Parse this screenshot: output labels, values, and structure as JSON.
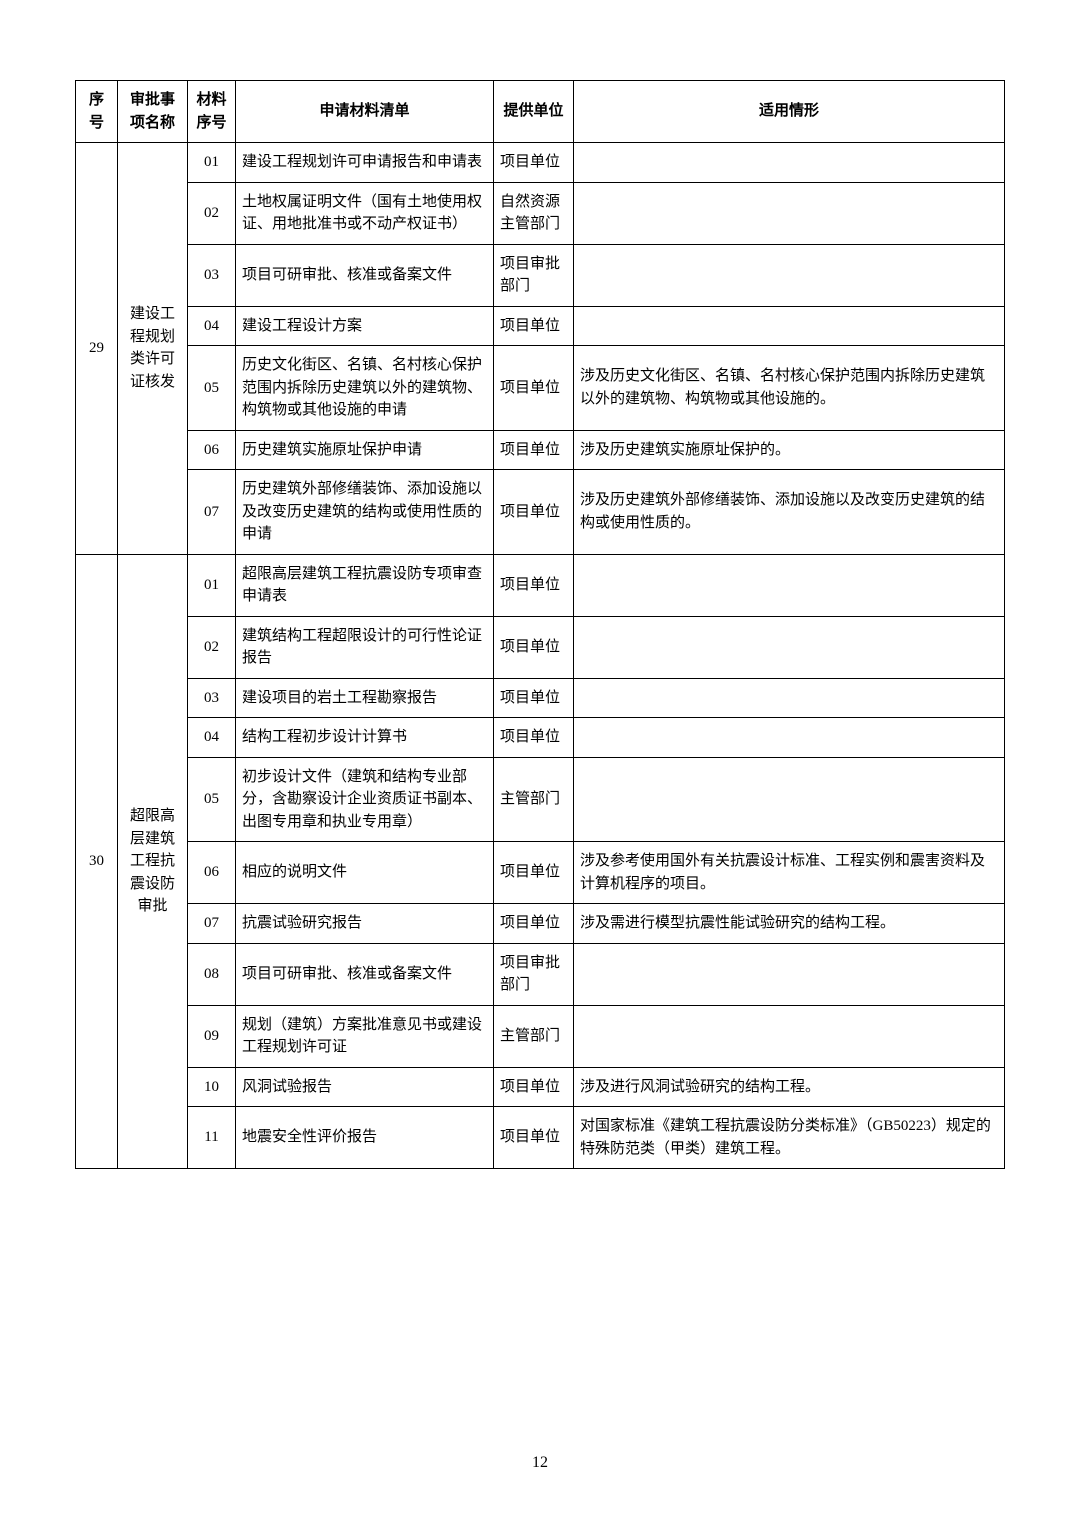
{
  "headers": {
    "seq": "序号",
    "item": "审批事项名称",
    "matseq": "材料序号",
    "list": "申请材料清单",
    "unit": "提供单位",
    "apply": "适用情形"
  },
  "groups": [
    {
      "seq": "29",
      "item": "建设工程规划类许可证核发",
      "rows": [
        {
          "matseq": "01",
          "list": "建设工程规划许可申请报告和申请表",
          "unit": "项目单位",
          "apply": ""
        },
        {
          "matseq": "02",
          "list": "土地权属证明文件（国有土地使用权证、用地批准书或不动产权证书）",
          "unit": "自然资源主管部门",
          "apply": ""
        },
        {
          "matseq": "03",
          "list": "项目可研审批、核准或备案文件",
          "unit": "项目审批部门",
          "apply": ""
        },
        {
          "matseq": "04",
          "list": "建设工程设计方案",
          "unit": "项目单位",
          "apply": ""
        },
        {
          "matseq": "05",
          "list": "历史文化街区、名镇、名村核心保护范围内拆除历史建筑以外的建筑物、构筑物或其他设施的申请",
          "unit": "项目单位",
          "apply": "涉及历史文化街区、名镇、名村核心保护范围内拆除历史建筑以外的建筑物、构筑物或其他设施的。"
        },
        {
          "matseq": "06",
          "list": "历史建筑实施原址保护申请",
          "unit": "项目单位",
          "apply": "涉及历史建筑实施原址保护的。"
        },
        {
          "matseq": "07",
          "list": "历史建筑外部修缮装饰、添加设施以及改变历史建筑的结构或使用性质的申请",
          "unit": "项目单位",
          "apply": "涉及历史建筑外部修缮装饰、添加设施以及改变历史建筑的结构或使用性质的。"
        }
      ]
    },
    {
      "seq": "30",
      "item": "超限高层建筑工程抗震设防审批",
      "rows": [
        {
          "matseq": "01",
          "list": "超限高层建筑工程抗震设防专项审查申请表",
          "unit": "项目单位",
          "apply": ""
        },
        {
          "matseq": "02",
          "list": "建筑结构工程超限设计的可行性论证报告",
          "unit": "项目单位",
          "apply": ""
        },
        {
          "matseq": "03",
          "list": "建设项目的岩土工程勘察报告",
          "unit": "项目单位",
          "apply": ""
        },
        {
          "matseq": "04",
          "list": "结构工程初步设计计算书",
          "unit": "项目单位",
          "apply": ""
        },
        {
          "matseq": "05",
          "list": "初步设计文件（建筑和结构专业部分，含勘察设计企业资质证书副本、出图专用章和执业专用章）",
          "unit": "主管部门",
          "apply": ""
        },
        {
          "matseq": "06",
          "list": "相应的说明文件",
          "unit": "项目单位",
          "apply": "涉及参考使用国外有关抗震设计标准、工程实例和震害资料及计算机程序的项目。"
        },
        {
          "matseq": "07",
          "list": "抗震试验研究报告",
          "unit": "项目单位",
          "apply": "涉及需进行模型抗震性能试验研究的结构工程。"
        },
        {
          "matseq": "08",
          "list": "项目可研审批、核准或备案文件",
          "unit": "项目审批部门",
          "apply": ""
        },
        {
          "matseq": "09",
          "list": "规划（建筑）方案批准意见书或建设工程规划许可证",
          "unit": "主管部门",
          "apply": ""
        },
        {
          "matseq": "10",
          "list": "风洞试验报告",
          "unit": "项目单位",
          "apply": "涉及进行风洞试验研究的结构工程。"
        },
        {
          "matseq": "11",
          "list": "地震安全性评价报告",
          "unit": "项目单位",
          "apply": "对国家标准《建筑工程抗震设防分类标准》（GB50223）规定的特殊防范类（甲类）建筑工程。"
        }
      ]
    }
  ],
  "pageNumber": "12"
}
